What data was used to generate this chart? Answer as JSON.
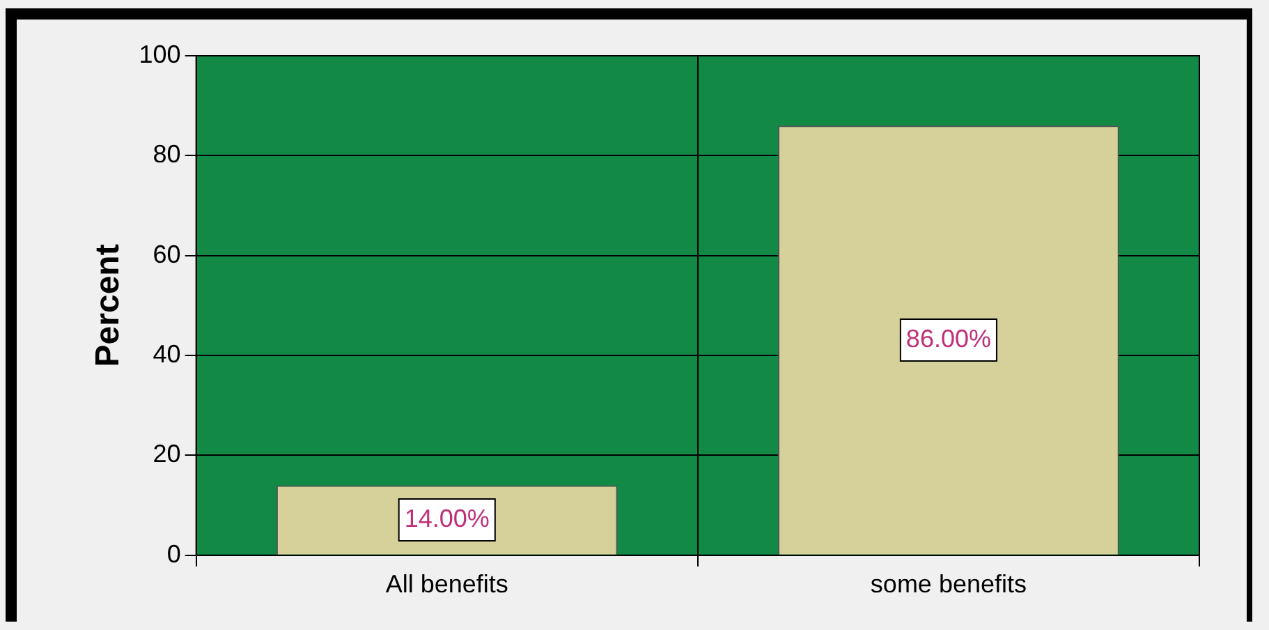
{
  "chart_data": {
    "type": "bar",
    "ylabel": "Percent",
    "categories": [
      "All benefits",
      "some benefits"
    ],
    "values": [
      14,
      86
    ],
    "value_labels": [
      "14.00%",
      "86.00%"
    ],
    "color": "#d6d09b",
    "ylim": [
      0,
      100
    ],
    "yticks": [
      0,
      20,
      40,
      60,
      80,
      100
    ],
    "grid": true,
    "legend": false
  }
}
